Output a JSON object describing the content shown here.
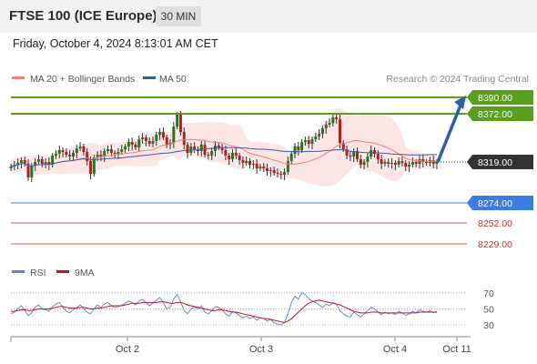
{
  "header": {
    "title": "FTSE 100 (ICE Europe)",
    "interval": "30 MIN"
  },
  "timestamp": "Friday, October 4, 2024 8:13:01 AM CET",
  "legend": {
    "ma20_label": "MA 20 + Bollinger Bands",
    "ma50_label": "MA 50",
    "rsi_label": "RSI",
    "ma9_label": "9MA",
    "credit": "Research © 2024 Trading Central"
  },
  "colors": {
    "bullish_level": "#5a9e1e",
    "pivot": "#3c7be0",
    "support": "#e05a5a",
    "current": "#333333",
    "ma20": "#f08080",
    "ma50": "#3a5b9a",
    "bands": "#fbe0e0",
    "arrow": "#2f5f9f",
    "rsi": "#5a7fd6",
    "ma9": "#d01010"
  },
  "chart_data": [
    {
      "type": "candlestick",
      "title": "FTSE 100 (ICE Europe)",
      "interval": "30 MIN",
      "x_ticks": [
        "Oct 2",
        "Oct 3",
        "Oct 4",
        "Oct 11"
      ],
      "ylim": [
        8210,
        8400
      ],
      "levels": [
        {
          "value": 8390.0,
          "label": "8390.00",
          "kind": "resistance"
        },
        {
          "value": 8372.0,
          "label": "8372.00",
          "kind": "resistance"
        },
        {
          "value": 8319.0,
          "label": "8319.00",
          "kind": "current"
        },
        {
          "value": 8274.0,
          "label": "8274.00",
          "kind": "pivot"
        },
        {
          "value": 8252.0,
          "label": "8252.00",
          "kind": "support"
        },
        {
          "value": 8229.0,
          "label": "8229.00",
          "kind": "support"
        }
      ],
      "forecast_arrow": {
        "from": 8319.0,
        "to": 8390.0
      },
      "close_path": [
        8314,
        8316,
        8318,
        8321,
        8317,
        8302,
        8315,
        8319,
        8322,
        8317,
        8319,
        8316,
        8326,
        8328,
        8332,
        8330,
        8327,
        8325,
        8329,
        8334,
        8336,
        8330,
        8320,
        8306,
        8324,
        8327,
        8325,
        8331,
        8333,
        8329,
        8328,
        8330,
        8333,
        8336,
        8341,
        8338,
        8335,
        8344,
        8346,
        8342,
        8339,
        8342,
        8349,
        8352,
        8346,
        8338,
        8340,
        8358,
        8371,
        8352,
        8338,
        8329,
        8336,
        8333,
        8331,
        8338,
        8327,
        8326,
        8331,
        8337,
        8335,
        8332,
        8326,
        8322,
        8329,
        8326,
        8321,
        8318,
        8320,
        8316,
        8317,
        8312,
        8314,
        8312,
        8309,
        8310,
        8307,
        8306,
        8305,
        8308,
        8320,
        8328,
        8336,
        8332,
        8341,
        8343,
        8339,
        8344,
        8347,
        8350,
        8356,
        8360,
        8362,
        8368,
        8366,
        8340,
        8333,
        8326,
        8325,
        8331,
        8322,
        8316,
        8319,
        8325,
        8332,
        8328,
        8322,
        8317,
        8319,
        8317,
        8318,
        8316,
        8320,
        8318,
        8314,
        8316,
        8319,
        8317,
        8322,
        8319,
        8318,
        8321,
        8317,
        8319
      ]
    },
    {
      "type": "line",
      "title": "",
      "series": [
        {
          "name": "RSI",
          "values": [
            44,
            46,
            50,
            54,
            48,
            42,
            45,
            52,
            55,
            50,
            49,
            47,
            53,
            56,
            58,
            52,
            47,
            45,
            49,
            52,
            55,
            51,
            46,
            44,
            50,
            55,
            52,
            56,
            58,
            54,
            52,
            53,
            55,
            57,
            60,
            58,
            55,
            60,
            62,
            58,
            54,
            57,
            61,
            64,
            58,
            50,
            52,
            62,
            68,
            59,
            48,
            44,
            50,
            52,
            50,
            54,
            46,
            44,
            48,
            53,
            52,
            49,
            44,
            41,
            47,
            45,
            42,
            39,
            41,
            38,
            40,
            36,
            39,
            38,
            35,
            37,
            33,
            31,
            30,
            33,
            44,
            58,
            66,
            62,
            70,
            68,
            63,
            60,
            58,
            55,
            52,
            56,
            54,
            58,
            56,
            48,
            44,
            41,
            40,
            46,
            43,
            40,
            44,
            48,
            52,
            50,
            46,
            43,
            46,
            44,
            45,
            43,
            47,
            45,
            42,
            44,
            47,
            45,
            49,
            47,
            46,
            48,
            45,
            47
          ]
        },
        {
          "name": "9MA",
          "values": [
            47,
            47,
            48,
            49,
            49,
            48,
            48,
            49,
            50,
            50,
            50,
            50,
            51,
            52,
            53,
            53,
            52,
            51,
            51,
            51,
            52,
            52,
            51,
            50,
            50,
            51,
            51,
            52,
            53,
            54,
            54,
            54,
            54,
            55,
            56,
            57,
            57,
            57,
            58,
            58,
            58,
            58,
            58,
            59,
            59,
            58,
            57,
            57,
            58,
            58,
            57,
            55,
            54,
            53,
            52,
            51,
            50,
            49,
            48,
            48,
            49,
            49,
            48,
            47,
            46,
            46,
            45,
            44,
            43,
            42,
            41,
            40,
            39,
            38,
            38,
            37,
            36,
            35,
            34,
            33,
            35,
            38,
            42,
            46,
            50,
            54,
            57,
            59,
            60,
            61,
            60,
            59,
            58,
            57,
            56,
            55,
            53,
            51,
            49,
            47,
            46,
            45,
            45,
            45,
            46,
            46,
            46,
            45,
            45,
            45,
            45,
            45,
            45,
            45,
            45,
            45,
            45,
            45,
            46,
            46,
            46,
            46,
            46,
            46
          ]
        }
      ],
      "y_ticks": [
        70,
        50,
        30
      ],
      "ylim": [
        20,
        80
      ]
    }
  ]
}
